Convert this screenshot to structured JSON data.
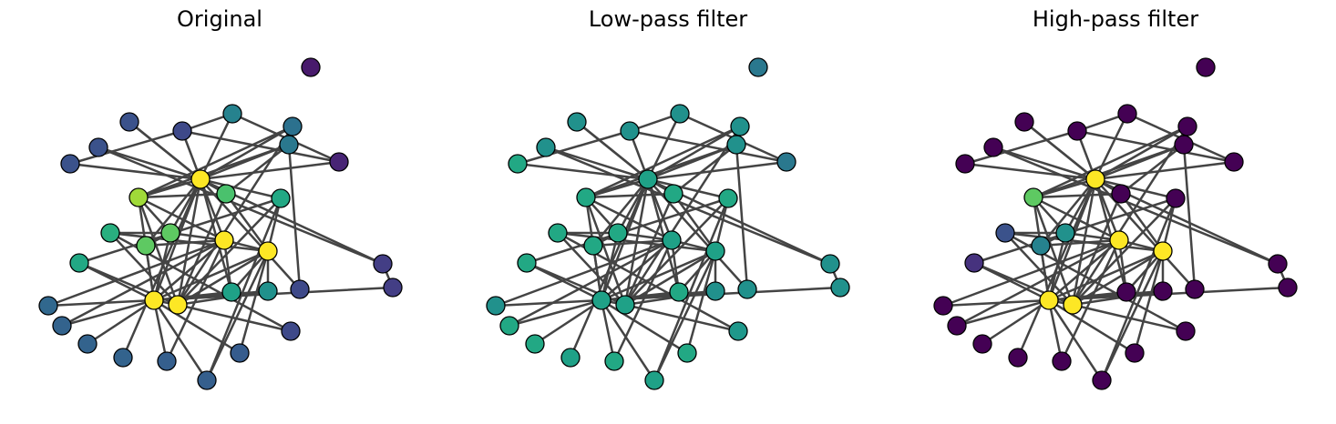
{
  "panels": [
    {
      "title": "Original",
      "node_colors": [
        "#fde725",
        "#fde725",
        "#fde725",
        "#fde725",
        "#fde725",
        "#a0da39",
        "#5ec962",
        "#5ec962",
        "#4ac16d",
        "#29af7f",
        "#22a884",
        "#22a884",
        "#1fa187",
        "#21918c",
        "#26828e",
        "#2a788e",
        "#2c718e",
        "#31688e",
        "#33638d",
        "#33638d",
        "#33638d",
        "#355f8d",
        "#355f8d",
        "#365c8d",
        "#3b528b",
        "#3b528b",
        "#3b528b",
        "#3e4989",
        "#3e4989",
        "#3e4989",
        "#433e85",
        "#433e85",
        "#482475",
        "#481a6c"
      ]
    },
    {
      "title": "Low-pass filter",
      "node_colors": [
        "#1fa187",
        "#1fa187",
        "#1fa187",
        "#1fa187",
        "#1fa187",
        "#22a884",
        "#22a884",
        "#22a884",
        "#22a884",
        "#22a884",
        "#22a884",
        "#22a884",
        "#22a884",
        "#21918c",
        "#21918c",
        "#21918c",
        "#21918c",
        "#21918c",
        "#22a884",
        "#22a884",
        "#1fa187",
        "#22a884",
        "#1fa187",
        "#22a884",
        "#22a884",
        "#21918c",
        "#21918c",
        "#21918c",
        "#1f988b",
        "#21918c",
        "#21918c",
        "#21918c",
        "#2a788e",
        "#2a788e"
      ]
    },
    {
      "title": "High-pass filter",
      "node_colors": [
        "#fde725",
        "#fde725",
        "#fde725",
        "#fde725",
        "#fde725",
        "#5ec962",
        "#21918c",
        "#26828e",
        "#440154",
        "#3b528b",
        "#46327e",
        "#440154",
        "#440154",
        "#440154",
        "#440154",
        "#440154",
        "#440154",
        "#440154",
        "#440154",
        "#440154",
        "#440154",
        "#440154",
        "#440154",
        "#440154",
        "#440154",
        "#440154",
        "#440154",
        "#440154",
        "#440154",
        "#440154",
        "#440154",
        "#440154",
        "#440154",
        "#440154"
      ]
    }
  ],
  "graph": {
    "node_count": 34,
    "edges": [
      [
        0,
        5
      ],
      [
        0,
        6
      ],
      [
        0,
        8
      ],
      [
        0,
        2
      ],
      [
        0,
        3
      ],
      [
        0,
        1
      ],
      [
        0,
        14
      ],
      [
        0,
        16
      ],
      [
        0,
        15
      ],
      [
        0,
        12
      ],
      [
        0,
        26
      ],
      [
        0,
        24
      ],
      [
        0,
        27
      ],
      [
        0,
        25
      ],
      [
        0,
        32
      ],
      [
        0,
        30
      ],
      [
        0,
        29
      ],
      [
        0,
        7
      ],
      [
        0,
        20
      ],
      [
        0,
        11
      ],
      [
        1,
        2
      ],
      [
        1,
        3
      ],
      [
        1,
        6
      ],
      [
        1,
        7
      ],
      [
        1,
        5
      ],
      [
        1,
        10
      ],
      [
        1,
        12
      ],
      [
        1,
        13
      ],
      [
        1,
        21
      ],
      [
        1,
        17
      ],
      [
        1,
        18
      ],
      [
        1,
        19
      ],
      [
        1,
        22
      ],
      [
        1,
        23
      ],
      [
        1,
        31
      ],
      [
        1,
        4
      ],
      [
        2,
        4
      ],
      [
        2,
        10
      ],
      [
        2,
        9
      ],
      [
        2,
        11
      ],
      [
        2,
        13
      ],
      [
        2,
        28
      ],
      [
        2,
        5
      ],
      [
        3,
        4
      ],
      [
        3,
        5
      ],
      [
        3,
        7
      ],
      [
        3,
        6
      ],
      [
        3,
        12
      ],
      [
        3,
        18
      ],
      [
        3,
        21
      ],
      [
        3,
        17
      ],
      [
        4,
        8
      ],
      [
        4,
        13
      ],
      [
        4,
        12
      ],
      [
        4,
        9
      ],
      [
        4,
        11
      ],
      [
        4,
        22
      ],
      [
        4,
        23
      ],
      [
        5,
        6
      ],
      [
        5,
        16
      ],
      [
        5,
        15
      ],
      [
        5,
        8
      ],
      [
        6,
        9
      ],
      [
        6,
        7
      ],
      [
        8,
        2
      ],
      [
        9,
        28
      ],
      [
        10,
        11
      ],
      [
        14,
        27
      ],
      [
        14,
        32
      ],
      [
        15,
        29
      ],
      [
        15,
        8
      ],
      [
        16,
        2
      ],
      [
        24,
        27
      ],
      [
        25,
        30
      ],
      [
        26,
        0
      ],
      [
        27,
        32
      ],
      [
        30,
        31
      ],
      [
        11,
        22
      ]
    ]
  }
}
